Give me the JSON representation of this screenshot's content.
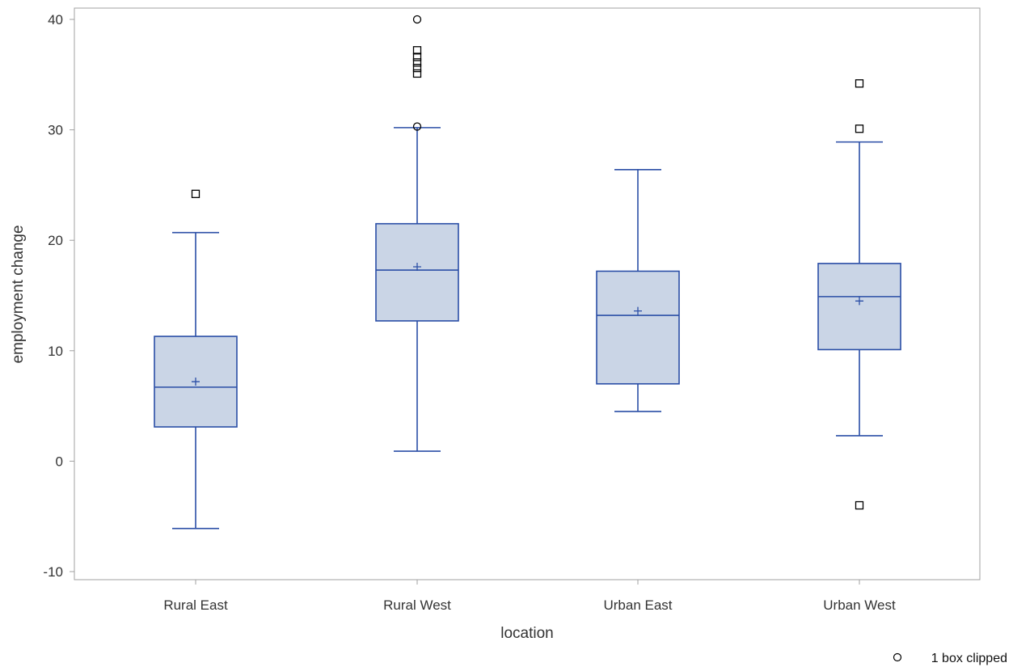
{
  "chart_data": {
    "type": "boxplot",
    "xlabel": "location",
    "ylabel": "employment change",
    "ylim": [
      -10,
      40
    ],
    "yticks": [
      -10,
      0,
      10,
      20,
      30,
      40
    ],
    "categories": [
      "Rural East",
      "Rural West",
      "Urban East",
      "Urban West"
    ],
    "boxes": [
      {
        "category": "Rural East",
        "whisker_low": -6.1,
        "q1": 3.1,
        "median": 6.7,
        "mean": 7.2,
        "q3": 11.3,
        "whisker_high": 20.7,
        "outliers": [
          {
            "value": 24.2,
            "marker": "square"
          }
        ]
      },
      {
        "category": "Rural West",
        "whisker_low": 0.9,
        "q1": 12.7,
        "median": 17.3,
        "mean": 17.6,
        "q3": 21.5,
        "whisker_high": 30.2,
        "outliers": [
          {
            "value": 30.3,
            "marker": "circle"
          },
          {
            "value": 35.1,
            "marker": "square"
          },
          {
            "value": 35.6,
            "marker": "square"
          },
          {
            "value": 36.1,
            "marker": "square"
          },
          {
            "value": 36.6,
            "marker": "square"
          },
          {
            "value": 37.2,
            "marker": "square"
          },
          {
            "value": 40.0,
            "marker": "circle"
          }
        ]
      },
      {
        "category": "Urban East",
        "whisker_low": 4.5,
        "q1": 7.0,
        "median": 13.2,
        "mean": 13.6,
        "q3": 17.2,
        "whisker_high": 26.4,
        "outliers": []
      },
      {
        "category": "Urban West",
        "whisker_low": 2.3,
        "q1": 10.1,
        "median": 14.9,
        "mean": 14.5,
        "q3": 17.9,
        "whisker_high": 28.9,
        "outliers": [
          {
            "value": 30.1,
            "marker": "square"
          },
          {
            "value": 34.2,
            "marker": "square"
          },
          {
            "value": -4.0,
            "marker": "square"
          }
        ]
      }
    ],
    "grid": false,
    "legend": "none",
    "footnote": "1 box clipped",
    "colors": {
      "box_fill": "#CAD5E6",
      "box_stroke": "#2A4EA6",
      "outlier": "#000000",
      "frame": "#A0A0A0",
      "text": "#333333"
    }
  }
}
